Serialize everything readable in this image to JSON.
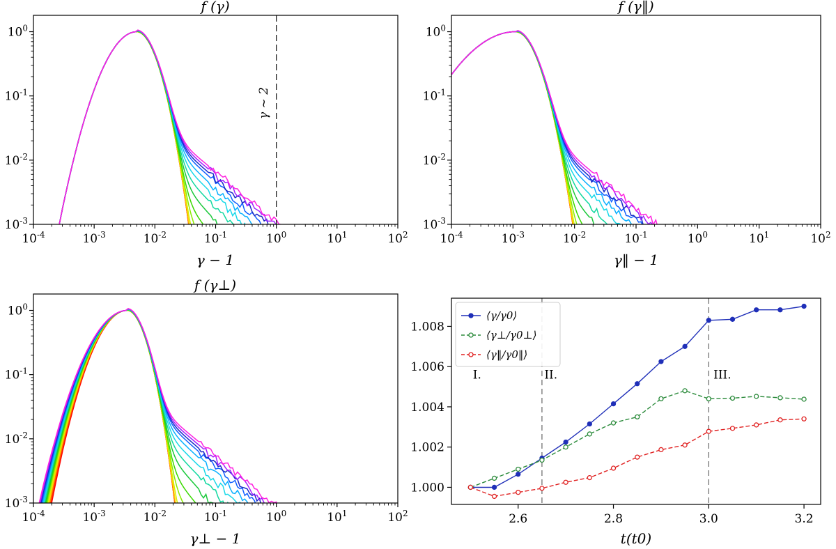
{
  "figure": {
    "panel_titles": [
      "f (γ)",
      "f (γ‖)",
      "f (γ⊥)"
    ],
    "xlabels": [
      "γ − 1",
      "γ‖ − 1",
      "γ⊥ − 1",
      "t(t0)"
    ],
    "annotation": "γ ~ 2"
  },
  "chart_data": [
    {
      "type": "line",
      "title": "f (γ)",
      "xlabel": "γ − 1",
      "ylabel": "",
      "xscale": "log",
      "yscale": "log",
      "xlim": [
        0.0001,
        100
      ],
      "ylim": [
        0.001,
        1.8
      ],
      "xticks": [
        "10^-4",
        "10^-3",
        "10^-2",
        "10^-1",
        "10^0",
        "10^1",
        "10^2"
      ],
      "yticks": [
        "10^-3",
        "10^-2",
        "10^-1",
        "10^0"
      ],
      "vline": {
        "x": 1,
        "style": "dashed",
        "label": "γ ~ 2"
      },
      "series_count": 15,
      "series_colors": [
        "#ff0000",
        "#ff2a00",
        "#ff7a00",
        "#ffd200",
        "#d8ef00",
        "#8aeb00",
        "#3ad900",
        "#1ac83a",
        "#10d8a0",
        "#18d8e8",
        "#0ab0ff",
        "#1060ff",
        "#1a2ac8",
        "#a020ff",
        "#ff20e0"
      ],
      "notes": "Normalized distribution curves peaking at 1 near x≈0.005; tails flatten over time from red (earliest) to magenta (latest)."
    },
    {
      "type": "line",
      "title": "f (γ‖)",
      "xlabel": "γ‖ − 1",
      "ylabel": "",
      "xscale": "log",
      "yscale": "log",
      "xlim": [
        0.0001,
        100
      ],
      "ylim": [
        0.001,
        1.8
      ],
      "xticks": [
        "10^-4",
        "10^-3",
        "10^-2",
        "10^-1",
        "10^0",
        "10^1",
        "10^2"
      ],
      "yticks": [
        "10^-3",
        "10^-2",
        "10^-1",
        "10^0"
      ],
      "series_count": 15,
      "notes": "Peak near x≈0.001; same color sequence."
    },
    {
      "type": "line",
      "title": "f (γ⊥)",
      "xlabel": "γ⊥ − 1",
      "ylabel": "",
      "xscale": "log",
      "yscale": "log",
      "xlim": [
        0.0001,
        100
      ],
      "ylim": [
        0.001,
        1.8
      ],
      "xticks": [
        "10^-4",
        "10^-3",
        "10^-2",
        "10^-1",
        "10^0",
        "10^1",
        "10^2"
      ],
      "yticks": [
        "10^-3",
        "10^-2",
        "10^-1",
        "10^0"
      ],
      "series_count": 15,
      "notes": "Peak near x≈0.0035; same color sequence."
    },
    {
      "type": "line",
      "title": "",
      "xlabel": "t(t0)",
      "ylabel": "",
      "xlim": [
        2.46,
        3.235
      ],
      "ylim": [
        0.99915,
        1.0094
      ],
      "xticks": [
        "2.6",
        "2.8",
        "3.0",
        "3.2"
      ],
      "yticks": [
        "1.000",
        "1.002",
        "1.004",
        "1.006",
        "1.008"
      ],
      "vlines": [
        2.65,
        3.0
      ],
      "regions": [
        "I.",
        "II.",
        "III."
      ],
      "legend": "top-left",
      "x": [
        2.5,
        2.55,
        2.6,
        2.65,
        2.7,
        2.75,
        2.8,
        2.85,
        2.9,
        2.95,
        3.0,
        3.05,
        3.1,
        3.15,
        3.2
      ],
      "series": [
        {
          "name": "⟨γ/γ0⟩",
          "color": "#1f2fb8",
          "style": "solid",
          "marker": "filled",
          "values": [
            1.0,
            1.0,
            1.00065,
            1.00145,
            1.00225,
            1.00315,
            1.00415,
            1.00515,
            1.00625,
            1.007,
            1.0083,
            1.00835,
            1.00882,
            1.00882,
            1.009
          ]
        },
        {
          "name": "⟨γ⊥/γ0⊥⟩",
          "color": "#2a8a3a",
          "style": "dashed",
          "marker": "open",
          "values": [
            1.0,
            1.00045,
            1.0009,
            1.00135,
            1.002,
            1.00265,
            1.0032,
            1.0035,
            1.0044,
            1.0048,
            1.0044,
            1.00443,
            1.00452,
            1.00445,
            1.00438
          ]
        },
        {
          "name": "⟨γ‖/γ0‖⟩",
          "color": "#e02020",
          "style": "dashed",
          "marker": "open",
          "values": [
            1.0,
            0.99955,
            0.99975,
            0.99995,
            1.00025,
            1.00048,
            1.00095,
            1.0015,
            1.00187,
            1.0021,
            1.00278,
            1.00293,
            1.0031,
            1.00335,
            1.0034
          ]
        }
      ]
    }
  ]
}
